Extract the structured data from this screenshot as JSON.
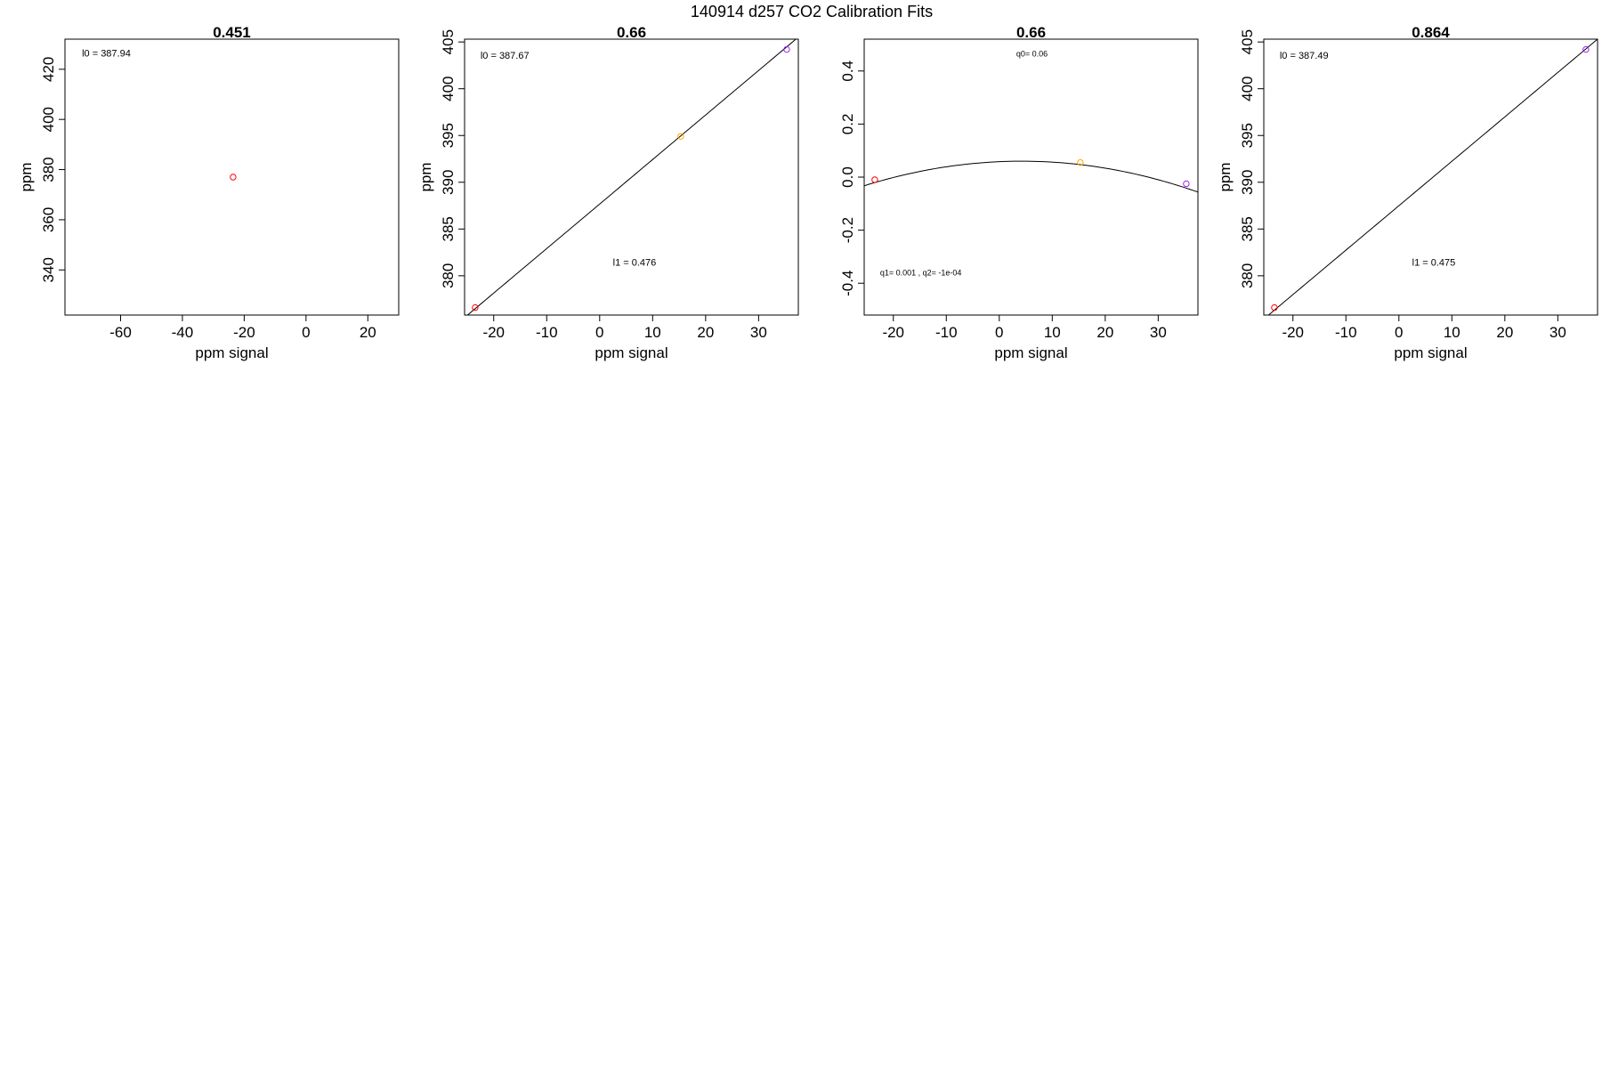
{
  "figure_title": "140914   d257   CO2 Calibration Fits",
  "chart_data": [
    {
      "type": "scatter",
      "title": "0.451",
      "xlabel": "ppm signal",
      "ylabel": "ppm",
      "xlim": [
        -78,
        30
      ],
      "ylim": [
        322,
        432
      ],
      "xticks": [
        -60,
        -40,
        -20,
        0,
        20
      ],
      "xtick_labels": [
        "-60",
        "-40",
        "-20",
        "0",
        "20"
      ],
      "yticks": [
        340,
        360,
        380,
        400,
        420
      ],
      "ytick_labels": [
        "340",
        "360",
        "380",
        "400",
        "420"
      ],
      "points": [
        {
          "x": -23.6,
          "y": 377,
          "color": "#ff0000"
        }
      ],
      "fit": null,
      "annotations": [
        {
          "text": "l0 =  387.94",
          "x": -72.5,
          "y": 425,
          "size": "normal"
        }
      ]
    },
    {
      "type": "scatter",
      "title": "0.66",
      "xlabel": "ppm signal",
      "ylabel": "ppm",
      "xlim": [
        -25.5,
        37.5
      ],
      "ylim": [
        375.8,
        405.3
      ],
      "xticks": [
        -20,
        -10,
        0,
        10,
        20,
        30
      ],
      "xtick_labels": [
        "-20",
        "-10",
        "0",
        "10",
        "20",
        "30"
      ],
      "yticks": [
        380,
        385,
        390,
        395,
        400,
        405
      ],
      "ytick_labels": [
        "380",
        "385",
        "390",
        "395",
        "400",
        "405"
      ],
      "points": [
        {
          "x": -23.5,
          "y": 376.6,
          "color": "#ff0000"
        },
        {
          "x": 15.3,
          "y": 394.9,
          "color": "#ffa500"
        },
        {
          "x": 35.3,
          "y": 404.2,
          "color": "#a020f0"
        }
      ],
      "fit": {
        "kind": "linear",
        "intercept": 387.67,
        "slope": 0.476
      },
      "annotations": [
        {
          "text": "l0 =  387.67",
          "x": -22.5,
          "y": 403.2,
          "size": "normal"
        },
        {
          "text": "l1 =  0.476",
          "x": 2.5,
          "y": 381.1,
          "size": "normal"
        }
      ]
    },
    {
      "type": "scatter",
      "title": "0.66",
      "xlabel": "ppm signal",
      "ylabel": "",
      "xlim": [
        -25.5,
        37.5
      ],
      "ylim": [
        -0.52,
        0.52
      ],
      "xticks": [
        -20,
        -10,
        0,
        10,
        20,
        30
      ],
      "xtick_labels": [
        "-20",
        "-10",
        "0",
        "10",
        "20",
        "30"
      ],
      "yticks": [
        -0.4,
        -0.2,
        0.0,
        0.2,
        0.4
      ],
      "ytick_labels": [
        "-0.4",
        "-0.2",
        "0.0",
        "0.2",
        "0.4"
      ],
      "points": [
        {
          "x": -23.5,
          "y": -0.01,
          "color": "#ff0000"
        },
        {
          "x": 15.3,
          "y": 0.055,
          "color": "#ffa500"
        },
        {
          "x": 35.3,
          "y": -0.025,
          "color": "#a020f0"
        }
      ],
      "fit": {
        "kind": "quadratic",
        "q0": 0.06,
        "vertex_x": 4.2,
        "curvature": -0.000105
      },
      "annotations": [
        {
          "text": "q0= 0.06",
          "x": 3.2,
          "y": 0.455,
          "size": "small"
        },
        {
          "text": "q1= 0.001 , q2= -1e-04",
          "x": -22.5,
          "y": -0.37,
          "size": "small"
        }
      ]
    },
    {
      "type": "scatter",
      "title": "0.864",
      "xlabel": "ppm signal",
      "ylabel": "ppm",
      "xlim": [
        -25.5,
        37.5
      ],
      "ylim": [
        375.8,
        405.3
      ],
      "xticks": [
        -20,
        -10,
        0,
        10,
        20,
        30
      ],
      "xtick_labels": [
        "-20",
        "-10",
        "0",
        "10",
        "20",
        "30"
      ],
      "yticks": [
        380,
        385,
        390,
        395,
        400,
        405
      ],
      "ytick_labels": [
        "380",
        "385",
        "390",
        "395",
        "400",
        "405"
      ],
      "points": [
        {
          "x": -23.5,
          "y": 376.6,
          "color": "#ff0000"
        },
        {
          "x": 35.3,
          "y": 404.2,
          "color": "#a020f0"
        }
      ],
      "fit": {
        "kind": "linear",
        "intercept": 387.49,
        "slope": 0.475
      },
      "annotations": [
        {
          "text": "l0 =  387.49",
          "x": -22.5,
          "y": 403.2,
          "size": "normal"
        },
        {
          "text": "l1 =  0.475",
          "x": 2.5,
          "y": 381.1,
          "size": "normal"
        }
      ]
    }
  ]
}
